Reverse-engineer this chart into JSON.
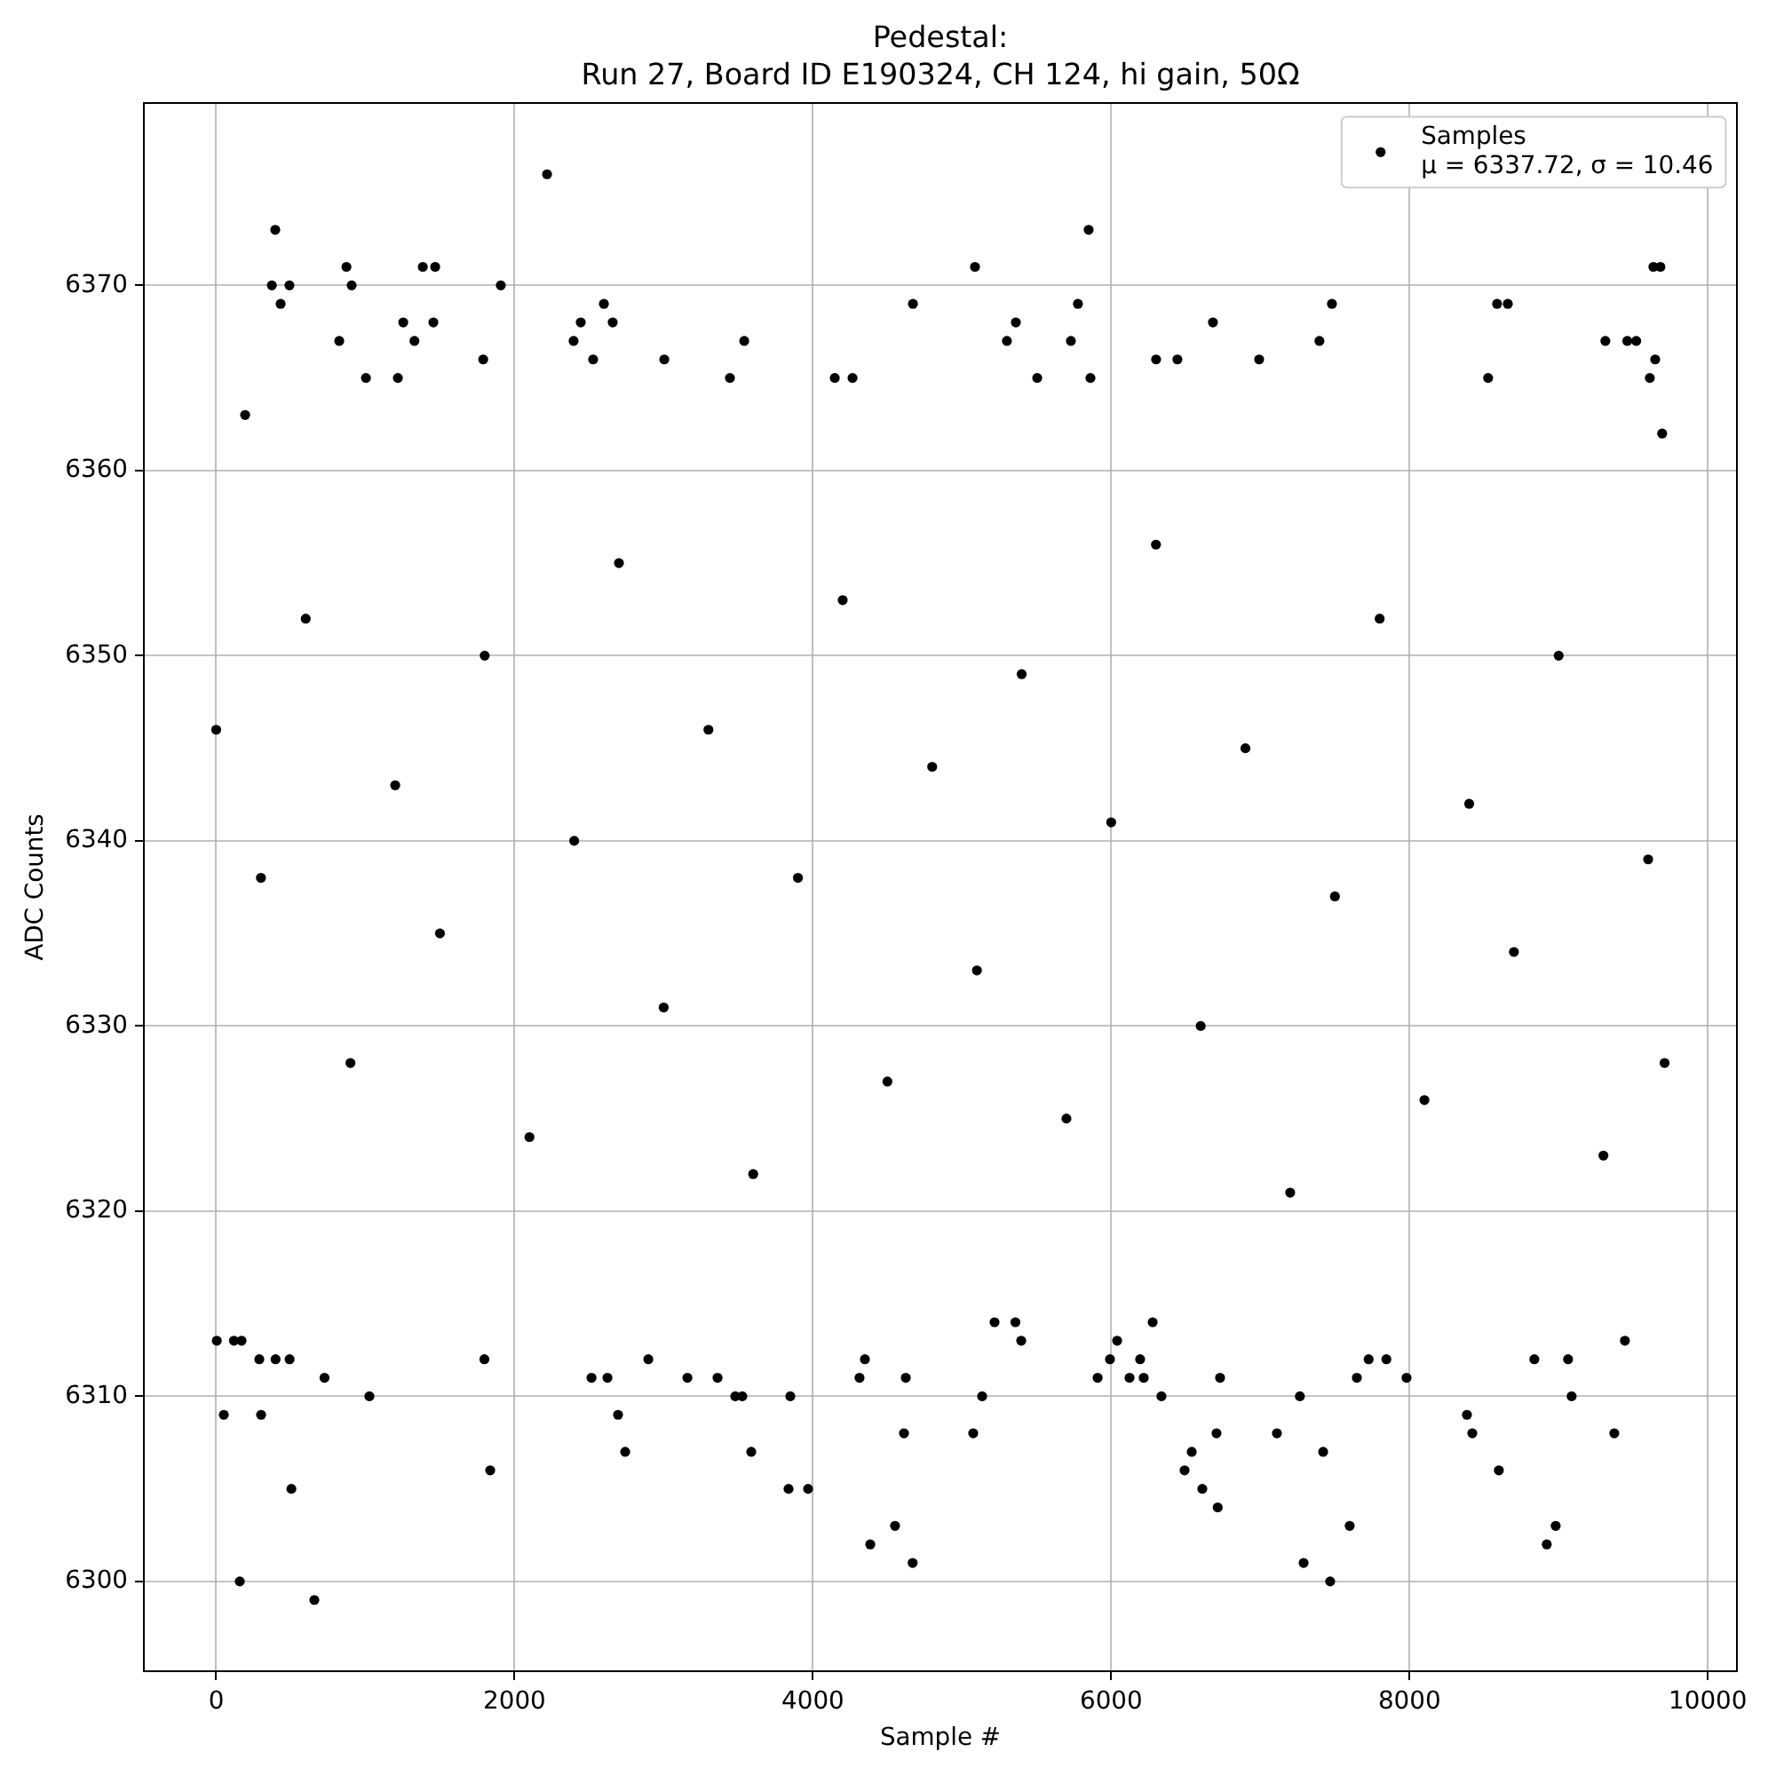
{
  "chart_data": {
    "type": "scatter",
    "title": "Pedestal:\nRun 27, Board ID E190324, CH 124, hi gain, 50Ω",
    "xlabel": "Sample #",
    "ylabel": "ADC Counts",
    "xlim": [
      -485,
      10195
    ],
    "ylim": [
      6295.15,
      6379.85
    ],
    "xticks": [
      0,
      2000,
      4000,
      6000,
      8000,
      10000
    ],
    "yticks": [
      6300,
      6310,
      6320,
      6330,
      6340,
      6350,
      6360,
      6370
    ],
    "grid": true,
    "legend": "top right",
    "marker": "circle",
    "series": [
      {
        "name": "Samples\nμ = 6337.72, σ = 10.46",
        "color": "#000000",
        "x": [
          396,
          373,
          491,
          432,
          873,
          908,
          1385,
          1468,
          1908,
          2218,
          2599,
          2444,
          2658,
          2396,
          2527,
          3540,
          4671,
          1254,
          1456,
          1329,
          825,
          1790,
          3004,
          194,
          4147,
          4266,
          3444,
          1004,
          1218,
          5087,
          5849,
          5777,
          5301,
          5361,
          5730,
          5504,
          5861,
          6682,
          6301,
          6444,
          6992,
          7396,
          7480,
          8587,
          8659,
          8527,
          9313,
          9460,
          9520,
          9635,
          9682,
          9647,
          9611,
          9694,
          158,
          658,
          504,
          51,
          301,
          1837,
          1027,
          4,
          119,
          170,
          289,
          398,
          492,
          726,
          1798,
          2694,
          2742,
          3587,
          3837,
          3968,
          4385,
          4551,
          4669,
          4611,
          3480,
          3527,
          3849,
          2516,
          2623,
          3159,
          3361,
          4313,
          4623,
          2897,
          4349,
          7468,
          7290,
          7599,
          8920,
          8980,
          6714,
          6611,
          6492,
          6540,
          7421,
          8599,
          5075,
          6706,
          7111,
          8421,
          9373,
          8385,
          5135,
          6337,
          7265,
          9087,
          5909,
          6123,
          6218,
          6730,
          7647,
          7980,
          5992,
          6194,
          7726,
          7845,
          8837,
          9063,
          5397,
          6040,
          9444,
          5218,
          5358,
          6278,
          0,
          300,
          600,
          900,
          1200,
          1500,
          1800,
          2100,
          2400,
          2700,
          3000,
          3300,
          3600,
          3900,
          4200,
          4500,
          4800,
          5100,
          5400,
          5700,
          6000,
          6300,
          6600,
          6900,
          7200,
          7500,
          7800,
          8100,
          8400,
          8700,
          9000,
          9300,
          9600,
          9710
        ],
        "values": [
          6373,
          6370,
          6370,
          6369,
          6371,
          6370,
          6371,
          6371,
          6370,
          6376,
          6369,
          6368,
          6368,
          6367,
          6366,
          6367,
          6369,
          6368,
          6368,
          6367,
          6367,
          6366,
          6366,
          6363,
          6365,
          6365,
          6365,
          6365,
          6365,
          6371,
          6373,
          6369,
          6367,
          6368,
          6367,
          6365,
          6365,
          6368,
          6366,
          6366,
          6366,
          6367,
          6369,
          6369,
          6369,
          6365,
          6367,
          6367,
          6367,
          6371,
          6371,
          6366,
          6365,
          6362,
          6300,
          6299,
          6305,
          6309,
          6309,
          6306,
          6310,
          6313,
          6313,
          6313,
          6312,
          6312,
          6312,
          6311,
          6312,
          6309,
          6307,
          6307,
          6305,
          6305,
          6302,
          6303,
          6301,
          6308,
          6310,
          6310,
          6310,
          6311,
          6311,
          6311,
          6311,
          6311,
          6311,
          6312,
          6312,
          6300,
          6301,
          6303,
          6302,
          6303,
          6304,
          6305,
          6306,
          6307,
          6307,
          6306,
          6308,
          6308,
          6308,
          6308,
          6308,
          6309,
          6310,
          6310,
          6310,
          6310,
          6311,
          6311,
          6311,
          6311,
          6311,
          6311,
          6312,
          6312,
          6312,
          6312,
          6312,
          6312,
          6313,
          6313,
          6313,
          6314,
          6314,
          6314,
          6346,
          6338,
          6352,
          6328,
          6343,
          6335,
          6350,
          6324,
          6340,
          6355,
          6331,
          6346,
          6322,
          6338,
          6353,
          6327,
          6344,
          6333,
          6349,
          6325,
          6341,
          6356,
          6330,
          6345,
          6321,
          6337,
          6352,
          6326,
          6342,
          6334,
          6350,
          6323,
          6339,
          6328
        ]
      }
    ]
  }
}
